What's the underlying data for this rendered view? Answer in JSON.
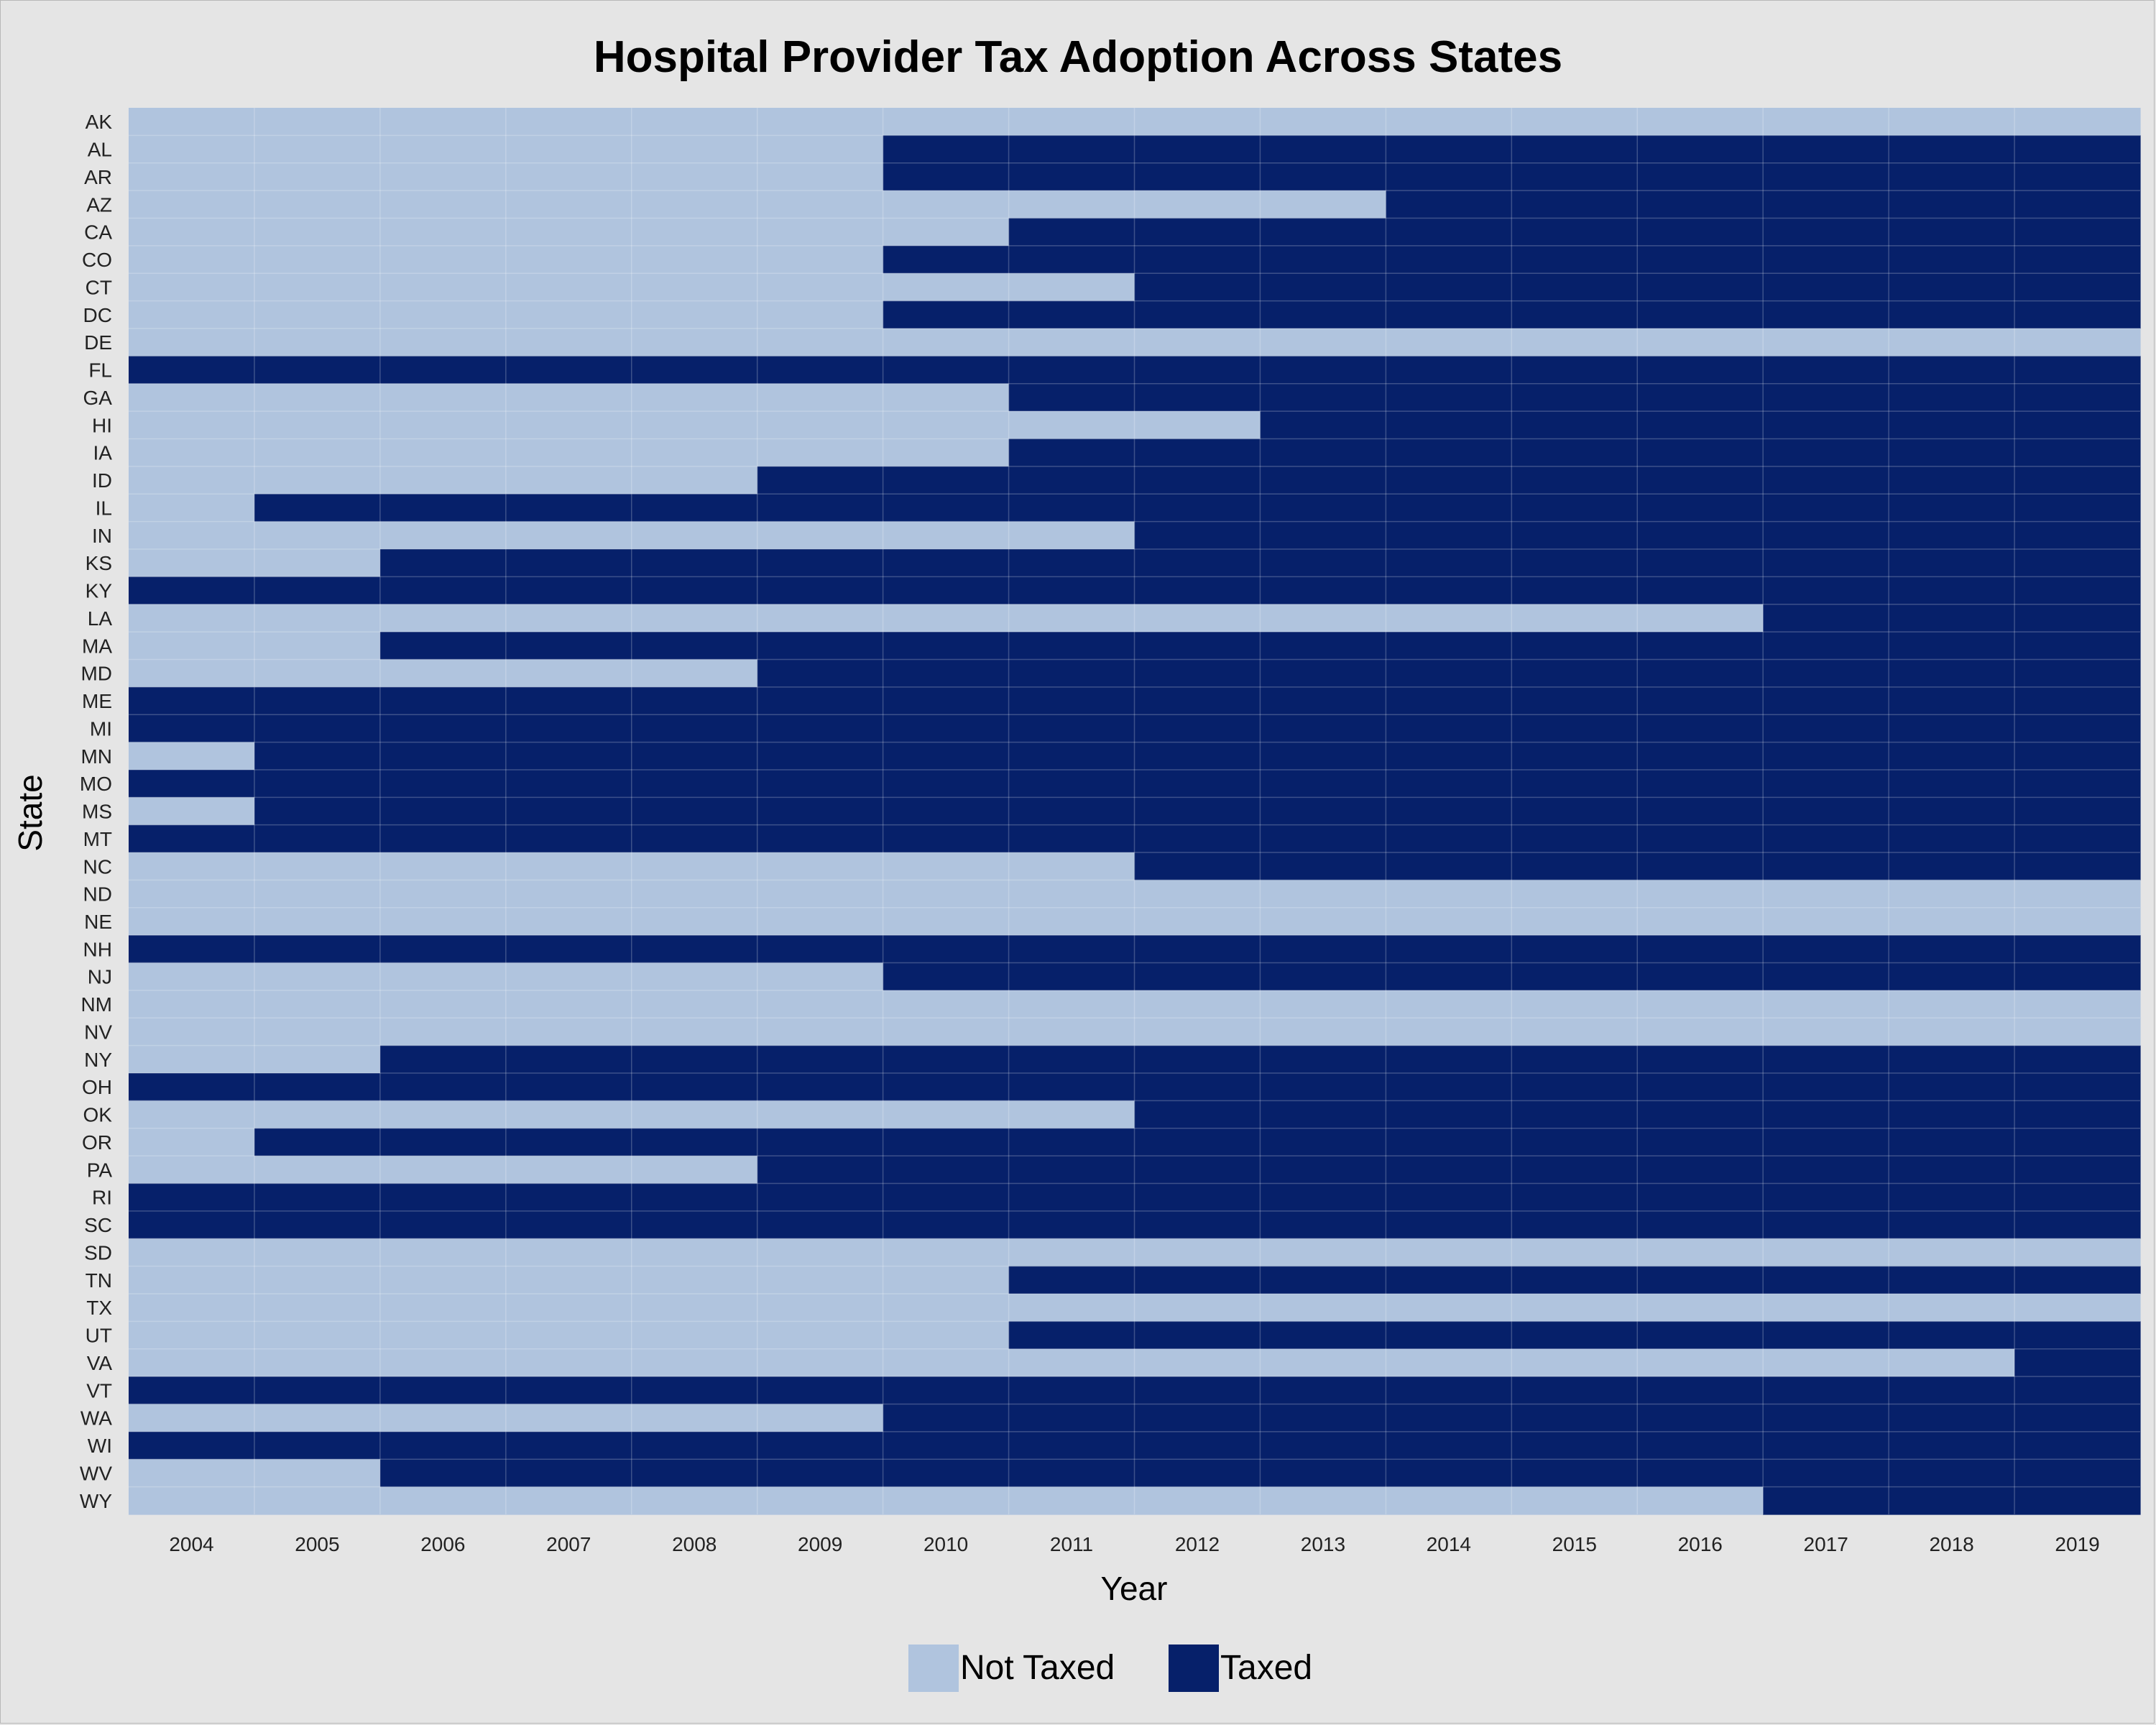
{
  "colors": {
    "not_taxed": "#b0c4de",
    "taxed": "#06206a",
    "background": "#e5e5e5",
    "grid": "#ffffff"
  },
  "chart_data": {
    "type": "heatmap",
    "title": "Hospital Provider Tax Adoption Across States",
    "xlabel": "Year",
    "ylabel": "State",
    "x": [
      2004,
      2005,
      2006,
      2007,
      2008,
      2009,
      2010,
      2011,
      2012,
      2013,
      2014,
      2015,
      2016,
      2017,
      2018,
      2019
    ],
    "y": [
      "AK",
      "AL",
      "AR",
      "AZ",
      "CA",
      "CO",
      "CT",
      "DC",
      "DE",
      "FL",
      "GA",
      "HI",
      "IA",
      "ID",
      "IL",
      "IN",
      "KS",
      "KY",
      "LA",
      "MA",
      "MD",
      "ME",
      "MI",
      "MN",
      "MO",
      "MS",
      "MT",
      "NC",
      "ND",
      "NE",
      "NH",
      "NJ",
      "NM",
      "NV",
      "NY",
      "OH",
      "OK",
      "OR",
      "PA",
      "RI",
      "SC",
      "SD",
      "TN",
      "TX",
      "UT",
      "VA",
      "VT",
      "WA",
      "WI",
      "WV",
      "WY"
    ],
    "legend": {
      "position": "bottom",
      "entries": [
        {
          "label": "Not Taxed",
          "value": 0
        },
        {
          "label": "Taxed",
          "value": 1
        }
      ]
    },
    "grid": true,
    "first_taxed_year": {
      "AK": null,
      "AL": 2010,
      "AR": 2010,
      "AZ": 2014,
      "CA": 2011,
      "CO": 2010,
      "CT": 2012,
      "DC": 2010,
      "DE": null,
      "FL": 2004,
      "GA": 2011,
      "HI": 2013,
      "IA": 2011,
      "ID": 2009,
      "IL": 2005,
      "IN": 2012,
      "KS": 2006,
      "KY": 2004,
      "LA": 2017,
      "MA": 2006,
      "MD": 2009,
      "ME": 2004,
      "MI": 2004,
      "MN": 2005,
      "MO": 2004,
      "MS": 2005,
      "MT": 2004,
      "NC": 2012,
      "ND": null,
      "NE": null,
      "NH": 2004,
      "NJ": 2010,
      "NM": null,
      "NV": null,
      "NY": 2006,
      "OH": 2004,
      "OK": 2012,
      "OR": 2005,
      "PA": 2009,
      "RI": 2004,
      "SC": 2004,
      "SD": null,
      "TN": 2011,
      "TX": null,
      "UT": 2011,
      "VA": 2019,
      "VT": 2004,
      "WA": 2010,
      "WI": 2004,
      "WV": 2006,
      "WY": 2017
    }
  }
}
